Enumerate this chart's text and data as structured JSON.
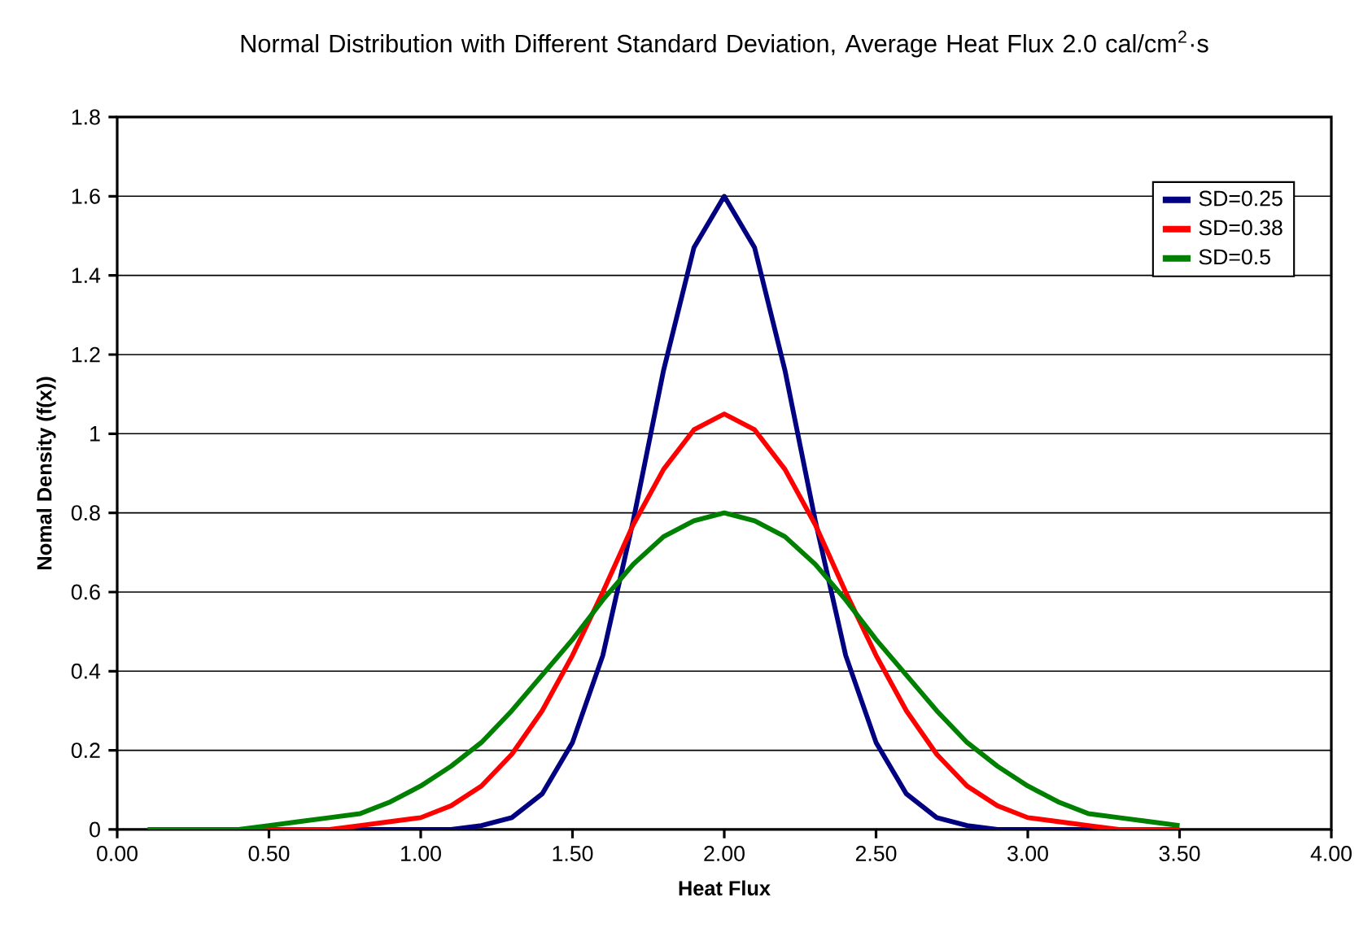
{
  "chart_data": {
    "type": "line",
    "title": "Normal Distribution with Different Standard Deviation, Average Heat Flux 2.0 cal/cm$^{2}$·s",
    "xlabel": "Heat Flux",
    "ylabel": "Nomal Density (f(x))",
    "x": [
      0.1,
      0.2,
      0.3,
      0.4,
      0.5,
      0.6,
      0.7,
      0.8,
      0.9,
      1.0,
      1.1,
      1.2,
      1.3,
      1.4,
      1.5,
      1.6,
      1.7,
      1.8,
      1.9,
      2.0,
      2.1,
      2.2,
      2.3,
      2.4,
      2.5,
      2.6,
      2.7,
      2.8,
      2.9,
      3.0,
      3.1,
      3.2,
      3.3,
      3.4,
      3.5
    ],
    "series": [
      {
        "name": "SD=0.25",
        "color": "#000080",
        "values": [
          null,
          null,
          null,
          null,
          null,
          null,
          0,
          0,
          0,
          0,
          0,
          0.01,
          0.03,
          0.09,
          0.22,
          0.44,
          0.78,
          1.16,
          1.47,
          1.6,
          1.47,
          1.16,
          0.78,
          0.44,
          0.22,
          0.09,
          0.03,
          0.01,
          0,
          0,
          0,
          0,
          0,
          null,
          null
        ]
      },
      {
        "name": "SD=0.38",
        "color": "#ff0000",
        "values": [
          null,
          null,
          null,
          0,
          0,
          0,
          0,
          0.01,
          0.02,
          0.03,
          0.06,
          0.11,
          0.19,
          0.3,
          0.44,
          0.6,
          0.77,
          0.91,
          1.01,
          1.05,
          1.01,
          0.91,
          0.77,
          0.6,
          0.44,
          0.3,
          0.19,
          0.11,
          0.06,
          0.03,
          0.02,
          0.01,
          0,
          0,
          0
        ]
      },
      {
        "name": "SD=0.5",
        "color": "#008000",
        "values": [
          0,
          0,
          0,
          0,
          0.01,
          0.02,
          0.03,
          0.04,
          0.07,
          0.11,
          0.16,
          0.22,
          0.3,
          0.39,
          0.48,
          0.58,
          0.67,
          0.74,
          0.78,
          0.8,
          0.78,
          0.74,
          0.67,
          0.58,
          0.48,
          0.39,
          0.3,
          0.22,
          0.16,
          0.11,
          0.07,
          0.04,
          0.03,
          0.02,
          0.01
        ]
      }
    ],
    "xlim": [
      0,
      4
    ],
    "ylim": [
      0,
      1.8
    ],
    "xticks": [
      {
        "value": 0,
        "label": "0.00"
      },
      {
        "value": 0.5,
        "label": "0.50"
      },
      {
        "value": 1,
        "label": "1.00"
      },
      {
        "value": 1.5,
        "label": "1.50"
      },
      {
        "value": 2,
        "label": "2.00"
      },
      {
        "value": 2.5,
        "label": "2.50"
      },
      {
        "value": 3,
        "label": "3.00"
      },
      {
        "value": 3.5,
        "label": "3.50"
      },
      {
        "value": 4,
        "label": "4.00"
      }
    ],
    "yticks": [
      0,
      0.2,
      0.4,
      0.6,
      0.8,
      1,
      1.2,
      1.4,
      1.6,
      1.8
    ],
    "grid": "y",
    "legend": "top right",
    "marker": "none",
    "line_style": "solid"
  }
}
